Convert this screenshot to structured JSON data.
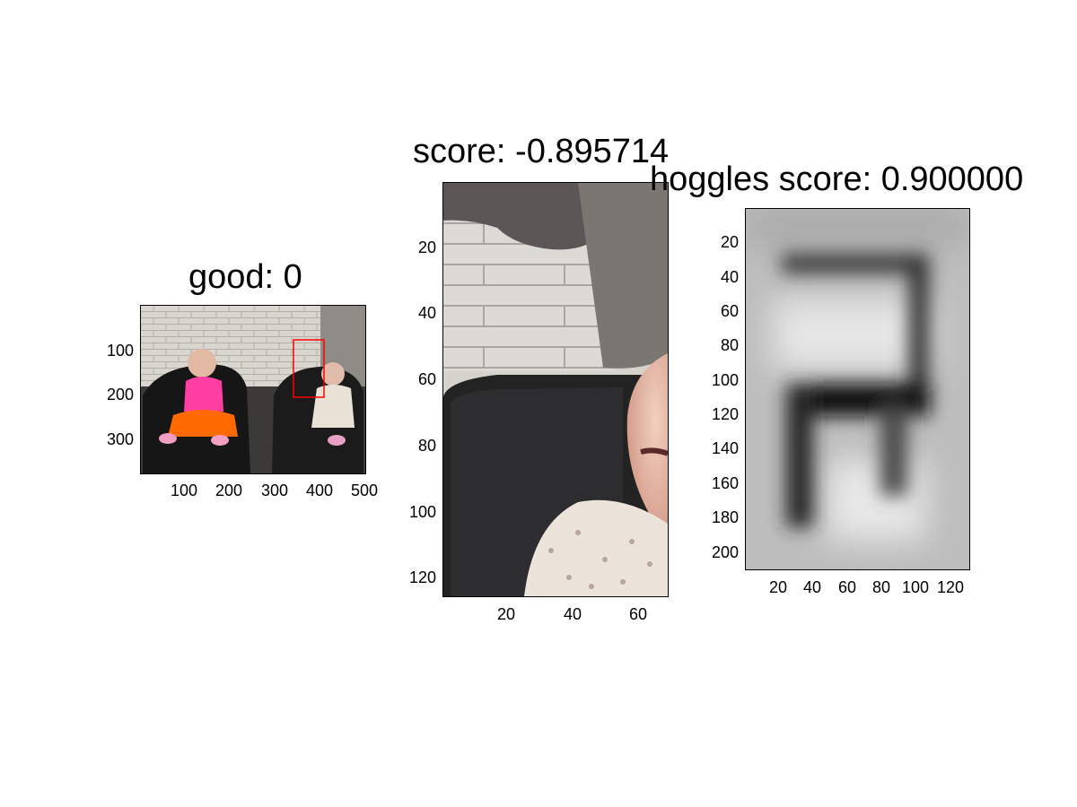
{
  "panels": [
    {
      "title": "good: 0",
      "image": "photo of two toddlers sitting in black leather armchairs; red rectangle marks the second child",
      "x_ticks": [
        "100",
        "200",
        "300",
        "400",
        "500"
      ],
      "y_ticks": [
        "100",
        "200",
        "300"
      ],
      "box_color": "#ff0000"
    },
    {
      "title": "score: -0.895714",
      "image": "cropped close-up of wall, black chair and part of a child's face",
      "x_ticks": [
        "20",
        "40",
        "60"
      ],
      "y_ticks": [
        "20",
        "40",
        "60",
        "80",
        "100",
        "120"
      ]
    },
    {
      "title": "hoggles score: 0.900000",
      "image": "grayscale blurry HOG visualization showing dark chair-like shape",
      "x_ticks": [
        "20",
        "40",
        "60",
        "80",
        "100",
        "120"
      ],
      "y_ticks": [
        "20",
        "40",
        "60",
        "80",
        "100",
        "120",
        "140",
        "160",
        "180",
        "200"
      ]
    }
  ]
}
